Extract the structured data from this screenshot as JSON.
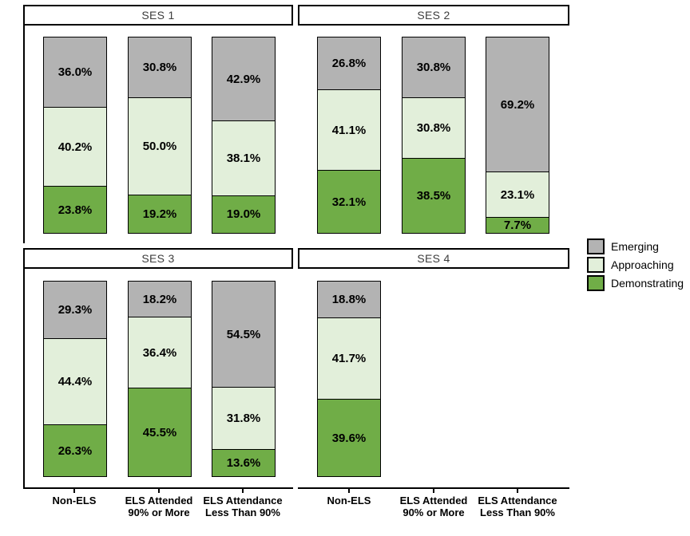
{
  "chart_data": {
    "type": "bar",
    "subtype": "stacked-100-percent-faceted",
    "grid": false,
    "ylim": [
      0,
      100
    ],
    "legend_position": "right-middle",
    "value_format": "percent-one-decimal",
    "series": [
      "Emerging",
      "Approaching",
      "Demonstrating"
    ],
    "series_colors": [
      "#b3b3b3",
      "#e2efda",
      "#70ad47"
    ],
    "categories": [
      [
        "Non-ELS"
      ],
      [
        "ELS Attended",
        "90% or More"
      ],
      [
        "ELS Attendance",
        "Less Than 90%"
      ]
    ],
    "facets": [
      {
        "title": "SES 1",
        "bars": [
          {
            "category": "Non-ELS",
            "values": [
              36.0,
              40.2,
              23.8
            ]
          },
          {
            "category": "ELS Attended 90% or More",
            "values": [
              30.8,
              50.0,
              19.2
            ]
          },
          {
            "category": "ELS Attendance Less Than 90%",
            "values": [
              42.9,
              38.1,
              19.0
            ]
          }
        ]
      },
      {
        "title": "SES 2",
        "bars": [
          {
            "category": "Non-ELS",
            "values": [
              26.8,
              41.1,
              32.1
            ]
          },
          {
            "category": "ELS Attended 90% or More",
            "values": [
              30.8,
              30.8,
              38.5
            ]
          },
          {
            "category": "ELS Attendance Less Than 90%",
            "values": [
              69.2,
              23.1,
              7.7
            ]
          }
        ]
      },
      {
        "title": "SES 3",
        "bars": [
          {
            "category": "Non-ELS",
            "values": [
              29.3,
              44.4,
              26.3
            ]
          },
          {
            "category": "ELS Attended 90% or More",
            "values": [
              18.2,
              36.4,
              45.5
            ]
          },
          {
            "category": "ELS Attendance Less Than 90%",
            "values": [
              54.5,
              31.8,
              13.6
            ]
          }
        ]
      },
      {
        "title": "SES 4",
        "bars": [
          {
            "category": "Non-ELS",
            "values": [
              18.8,
              41.7,
              39.6
            ]
          }
        ]
      }
    ]
  },
  "colors": {
    "emerging": "#b3b3b3",
    "approaching": "#e2efda",
    "demonstrating": "#70ad47",
    "border": "#000000",
    "background": "#ffffff",
    "strip_text": "#3d3d3d"
  }
}
